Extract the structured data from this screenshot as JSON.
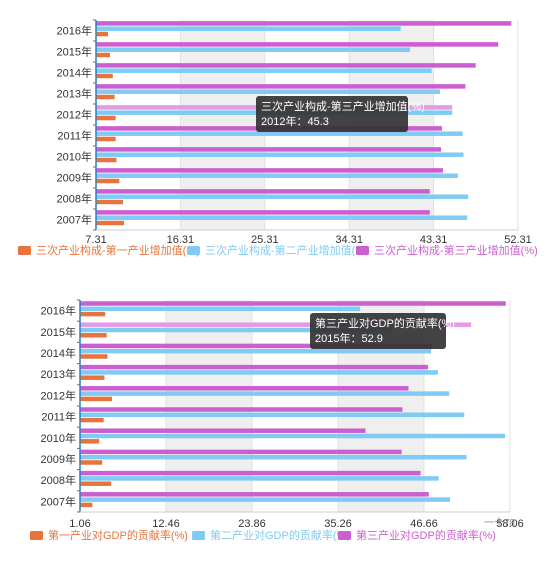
{
  "colors": {
    "primary": "#e8743b",
    "secondary": "#7fcbf3",
    "tertiary": "#cc5fd0",
    "tertiary_highlight": "#e39be6",
    "axis": "#2f7fc1",
    "stripe": "#efefef",
    "tooltip_bg": "#333333"
  },
  "chart_data": [
    {
      "type": "bar",
      "orientation": "horizontal",
      "categories": [
        "2016年",
        "2015年",
        "2014年",
        "2013年",
        "2012年",
        "2011年",
        "2010年",
        "2009年",
        "2008年",
        "2007年"
      ],
      "xlim": [
        7.31,
        52.31
      ],
      "x_ticks": [
        "7.31",
        "16.31",
        "25.31",
        "34.31",
        "43.31",
        "52.31"
      ],
      "series": [
        {
          "name": "三次产业构成-第一产业增加值(%)",
          "values": [
            8.6,
            8.8,
            9.1,
            9.3,
            9.4,
            9.4,
            9.5,
            9.8,
            10.2,
            10.3
          ]
        },
        {
          "name": "三次产业构成-第二产业增加值(%)",
          "values": [
            39.8,
            40.8,
            43.1,
            44.0,
            45.3,
            46.4,
            46.5,
            45.9,
            47.0,
            46.9
          ]
        },
        {
          "name": "三次产业构成-第三产业增加值(%)",
          "values": [
            51.6,
            50.2,
            47.8,
            46.7,
            45.3,
            44.2,
            44.1,
            44.3,
            42.9,
            42.9
          ]
        }
      ],
      "highlight": {
        "series": 2,
        "category": 4
      },
      "tooltip": {
        "title": "三次产业构成-第三产业增加值(%)",
        "text": "2012年：45.3"
      }
    },
    {
      "type": "bar",
      "orientation": "horizontal",
      "categories": [
        "2016年",
        "2015年",
        "2014年",
        "2013年",
        "2012年",
        "2011年",
        "2010年",
        "2009年",
        "2008年",
        "2007年"
      ],
      "xlim": [
        1.06,
        58.06
      ],
      "x_ticks": [
        "1.06",
        "12.46",
        "23.86",
        "35.26",
        "46.66",
        "58.06"
      ],
      "series": [
        {
          "name": "第一产业对GDP的贡献率(%)",
          "values": [
            4.4,
            4.6,
            4.7,
            4.3,
            5.3,
            4.2,
            3.6,
            4.0,
            5.2,
            2.7
          ]
        },
        {
          "name": "第二产业对GDP的贡献率(%)",
          "values": [
            38.2,
            42.4,
            47.6,
            48.5,
            50.0,
            52.0,
            57.4,
            52.3,
            48.6,
            50.1
          ]
        },
        {
          "name": "第三产业对GDP的贡献率(%)",
          "values": [
            57.5,
            52.9,
            47.8,
            47.2,
            44.6,
            43.8,
            38.9,
            43.7,
            46.2,
            47.3
          ]
        }
      ],
      "highlight": {
        "series": 2,
        "category": 1
      },
      "tooltip": {
        "title": "第三产业对GDP的贡献率(%)",
        "text": "2015年：52.9"
      }
    }
  ],
  "watermark": "一十78"
}
